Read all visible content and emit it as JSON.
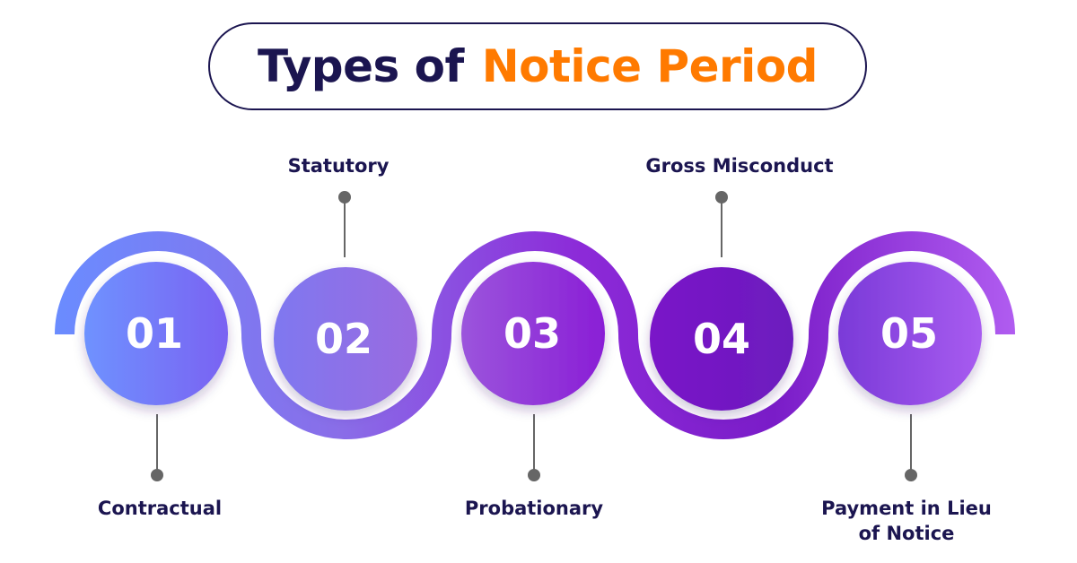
{
  "title": {
    "part1": "Types of",
    "part2": "Notice Period"
  },
  "steps": [
    {
      "number": "01",
      "label": "Contractual"
    },
    {
      "number": "02",
      "label": "Statutory"
    },
    {
      "number": "03",
      "label": "Probationary"
    },
    {
      "number": "04",
      "label": "Gross Misconduct"
    },
    {
      "number": "05",
      "label": "Payment in Lieu of Notice"
    }
  ],
  "colors": {
    "title_dark": "#1b1550",
    "title_accent": "#ff7a00",
    "label_text": "#1b1550",
    "connector": "#666666",
    "wave_start": "#6a8cff",
    "wave_mid": "#8a1ad6",
    "wave_end": "#b05cf0"
  }
}
